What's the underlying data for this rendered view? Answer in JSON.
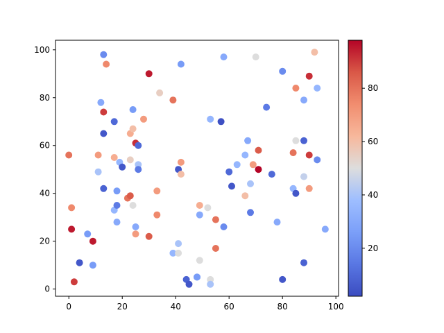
{
  "chart_data": {
    "type": "scatter",
    "title": "",
    "xlabel": "",
    "ylabel": "",
    "xlim": [
      -5,
      101
    ],
    "ylim": [
      -3,
      104
    ],
    "xticks": [
      0,
      20,
      40,
      60,
      80,
      100
    ],
    "yticks": [
      0,
      20,
      40,
      60,
      80,
      100
    ],
    "grid": false,
    "colormap": "coolwarm",
    "colorbar": {
      "range": [
        2,
        98
      ],
      "ticks": [
        20,
        40,
        60,
        80
      ]
    },
    "points": [
      {
        "x": 0,
        "y": 56,
        "c": 80
      },
      {
        "x": 1,
        "y": 34,
        "c": 75
      },
      {
        "x": 1,
        "y": 25,
        "c": 95
      },
      {
        "x": 2,
        "y": 3,
        "c": 90
      },
      {
        "x": 4,
        "y": 11,
        "c": 5
      },
      {
        "x": 7,
        "y": 23,
        "c": 25
      },
      {
        "x": 9,
        "y": 10,
        "c": 25
      },
      {
        "x": 9,
        "y": 20,
        "c": 95
      },
      {
        "x": 11,
        "y": 56,
        "c": 70
      },
      {
        "x": 11,
        "y": 49,
        "c": 40
      },
      {
        "x": 12,
        "y": 78,
        "c": 30
      },
      {
        "x": 13,
        "y": 98,
        "c": 20
      },
      {
        "x": 13,
        "y": 74,
        "c": 90
      },
      {
        "x": 13,
        "y": 65,
        "c": 5
      },
      {
        "x": 13,
        "y": 42,
        "c": 8
      },
      {
        "x": 14,
        "y": 94,
        "c": 75
      },
      {
        "x": 17,
        "y": 70,
        "c": 10
      },
      {
        "x": 17,
        "y": 55,
        "c": 65
      },
      {
        "x": 17,
        "y": 33,
        "c": 35
      },
      {
        "x": 18,
        "y": 41,
        "c": 25
      },
      {
        "x": 18,
        "y": 35,
        "c": 15
      },
      {
        "x": 18,
        "y": 28,
        "c": 30
      },
      {
        "x": 19,
        "y": 53,
        "c": 35
      },
      {
        "x": 20,
        "y": 51,
        "c": 5
      },
      {
        "x": 22,
        "y": 38,
        "c": 80
      },
      {
        "x": 23,
        "y": 65,
        "c": 65
      },
      {
        "x": 23,
        "y": 54,
        "c": 55
      },
      {
        "x": 23,
        "y": 39,
        "c": 85
      },
      {
        "x": 24,
        "y": 75,
        "c": 25
      },
      {
        "x": 24,
        "y": 67,
        "c": 60
      },
      {
        "x": 24,
        "y": 35,
        "c": 50
      },
      {
        "x": 25,
        "y": 61,
        "c": 92
      },
      {
        "x": 25,
        "y": 26,
        "c": 30
      },
      {
        "x": 25,
        "y": 23,
        "c": 70
      },
      {
        "x": 26,
        "y": 60,
        "c": 10
      },
      {
        "x": 26,
        "y": 52,
        "c": 40
      },
      {
        "x": 26,
        "y": 50,
        "c": 15
      },
      {
        "x": 28,
        "y": 71,
        "c": 70
      },
      {
        "x": 30,
        "y": 90,
        "c": 95
      },
      {
        "x": 30,
        "y": 22,
        "c": 85
      },
      {
        "x": 33,
        "y": 41,
        "c": 70
      },
      {
        "x": 33,
        "y": 31,
        "c": 75
      },
      {
        "x": 34,
        "y": 82,
        "c": 55
      },
      {
        "x": 39,
        "y": 79,
        "c": 80
      },
      {
        "x": 39,
        "y": 15,
        "c": 35
      },
      {
        "x": 41,
        "y": 50,
        "c": 5
      },
      {
        "x": 41,
        "y": 19,
        "c": 40
      },
      {
        "x": 41,
        "y": 15,
        "c": 50
      },
      {
        "x": 42,
        "y": 94,
        "c": 25
      },
      {
        "x": 42,
        "y": 53,
        "c": 70
      },
      {
        "x": 42,
        "y": 48,
        "c": 60
      },
      {
        "x": 44,
        "y": 4,
        "c": 8
      },
      {
        "x": 45,
        "y": 2,
        "c": 5
      },
      {
        "x": 48,
        "y": 5,
        "c": 20
      },
      {
        "x": 48,
        "y": 5,
        "c": 25
      },
      {
        "x": 49,
        "y": 35,
        "c": 65
      },
      {
        "x": 49,
        "y": 31,
        "c": 30
      },
      {
        "x": 49,
        "y": 12,
        "c": 50
      },
      {
        "x": 52,
        "y": 34,
        "c": 50
      },
      {
        "x": 53,
        "y": 71,
        "c": 35
      },
      {
        "x": 53,
        "y": 4,
        "c": 50
      },
      {
        "x": 53,
        "y": 2,
        "c": 40
      },
      {
        "x": 55,
        "y": 29,
        "c": 80
      },
      {
        "x": 55,
        "y": 17,
        "c": 80
      },
      {
        "x": 57,
        "y": 70,
        "c": 3
      },
      {
        "x": 58,
        "y": 97,
        "c": 30
      },
      {
        "x": 58,
        "y": 26,
        "c": 20
      },
      {
        "x": 60,
        "y": 49,
        "c": 10
      },
      {
        "x": 61,
        "y": 43,
        "c": 5
      },
      {
        "x": 63,
        "y": 52,
        "c": 35
      },
      {
        "x": 66,
        "y": 56,
        "c": 35
      },
      {
        "x": 66,
        "y": 39,
        "c": 60
      },
      {
        "x": 67,
        "y": 62,
        "c": 30
      },
      {
        "x": 68,
        "y": 44,
        "c": 40
      },
      {
        "x": 68,
        "y": 32,
        "c": 15
      },
      {
        "x": 69,
        "y": 52,
        "c": 70
      },
      {
        "x": 70,
        "y": 97,
        "c": 50
      },
      {
        "x": 71,
        "y": 58,
        "c": 85
      },
      {
        "x": 71,
        "y": 50,
        "c": 98
      },
      {
        "x": 74,
        "y": 76,
        "c": 15
      },
      {
        "x": 76,
        "y": 48,
        "c": 10
      },
      {
        "x": 78,
        "y": 28,
        "c": 30
      },
      {
        "x": 80,
        "y": 91,
        "c": 20
      },
      {
        "x": 80,
        "y": 4,
        "c": 5
      },
      {
        "x": 84,
        "y": 57,
        "c": 80
      },
      {
        "x": 84,
        "y": 42,
        "c": 35
      },
      {
        "x": 85,
        "y": 84,
        "c": 75
      },
      {
        "x": 85,
        "y": 62,
        "c": 50
      },
      {
        "x": 85,
        "y": 40,
        "c": 5
      },
      {
        "x": 88,
        "y": 79,
        "c": 30
      },
      {
        "x": 88,
        "y": 62,
        "c": 8
      },
      {
        "x": 88,
        "y": 47,
        "c": 45
      },
      {
        "x": 88,
        "y": 11,
        "c": 8
      },
      {
        "x": 90,
        "y": 89,
        "c": 92
      },
      {
        "x": 90,
        "y": 56,
        "c": 90
      },
      {
        "x": 90,
        "y": 42,
        "c": 70
      },
      {
        "x": 92,
        "y": 99,
        "c": 60
      },
      {
        "x": 93,
        "y": 84,
        "c": 35
      },
      {
        "x": 93,
        "y": 54,
        "c": 20
      },
      {
        "x": 96,
        "y": 25,
        "c": 30
      }
    ]
  }
}
